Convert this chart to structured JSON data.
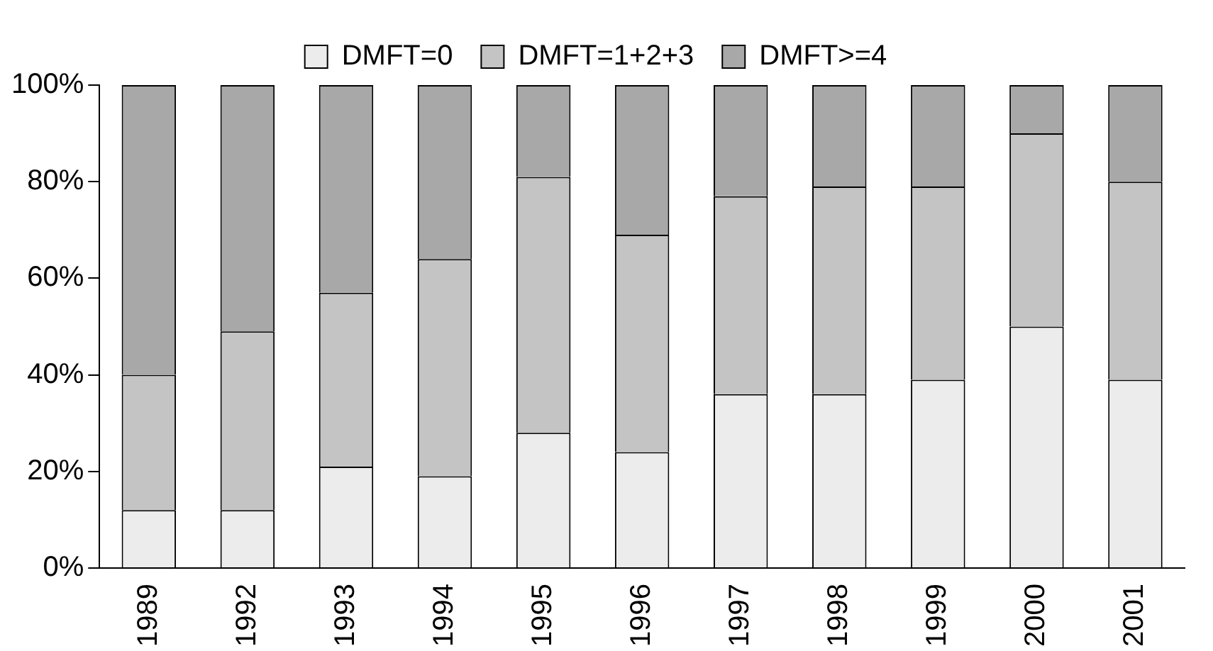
{
  "chart_data": {
    "type": "bar",
    "stacked": true,
    "categories": [
      "1989",
      "1992",
      "1993",
      "1994",
      "1995",
      "1996",
      "1997",
      "1998",
      "1999",
      "2000",
      "2001"
    ],
    "series": [
      {
        "name": "DMFT=0",
        "color": "#ececec",
        "values": [
          12,
          12,
          21,
          19,
          28,
          24,
          36,
          36,
          39,
          50,
          39
        ]
      },
      {
        "name": "DMFT=1+2+3",
        "color": "#c4c4c4",
        "values": [
          28,
          37,
          36,
          45,
          53,
          45,
          41,
          43,
          40,
          40,
          41
        ]
      },
      {
        "name": "DMFT>=4",
        "color": "#a8a8a8",
        "values": [
          60,
          51,
          43,
          36,
          19,
          31,
          23,
          21,
          21,
          10,
          20
        ]
      }
    ],
    "ylim": [
      0,
      100
    ],
    "yticks": [
      {
        "value": 0,
        "label": "0%"
      },
      {
        "value": 20,
        "label": "20%"
      },
      {
        "value": 40,
        "label": "40%"
      },
      {
        "value": 60,
        "label": "60%"
      },
      {
        "value": 80,
        "label": "80%"
      },
      {
        "value": 100,
        "label": "100%"
      }
    ],
    "grid": false,
    "legend": "top"
  }
}
